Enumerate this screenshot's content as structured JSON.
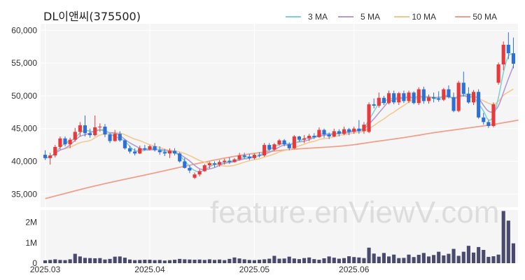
{
  "chart_data": {
    "type": "candlestick",
    "title": "DL이앤씨(375500)",
    "watermark": "feature.enViewV.com",
    "colors": {
      "up": "#e8383b",
      "down": "#2f6fd8",
      "volume": "#4a4a6e",
      "ma3": "#7fd3cf",
      "ma5": "#b59ad1",
      "ma10": "#f5c98e",
      "ma50": "#f0a08a"
    },
    "legend": [
      {
        "name": "3 MA",
        "color": "#7fd3cf"
      },
      {
        "name": "5 MA",
        "color": "#b59ad1"
      },
      {
        "name": "10 MA",
        "color": "#f5c98e"
      },
      {
        "name": "50 MA",
        "color": "#f0a08a"
      }
    ],
    "price_axis": {
      "ylim": [
        33000,
        61000
      ],
      "ticks": [
        60000,
        55000,
        50000,
        45000,
        40000,
        35000
      ],
      "tick_labels": [
        "60,000",
        "55,000",
        "50,000",
        "45,000",
        "40,000",
        "35,000"
      ]
    },
    "volume_axis": {
      "ylim": [
        0,
        2600000
      ],
      "ticks": [
        2000000,
        1000000,
        0
      ],
      "tick_labels": [
        "2M",
        "1M",
        "0"
      ]
    },
    "x_ticks": [
      {
        "index": 0,
        "label": "2025.03"
      },
      {
        "index": 21,
        "label": "2025.04"
      },
      {
        "index": 42,
        "label": "2025.05"
      },
      {
        "index": 62,
        "label": "2025.06"
      }
    ],
    "candles": [
      [
        41000,
        41700,
        40200,
        40500
      ],
      [
        40500,
        41300,
        39500,
        40900
      ],
      [
        40900,
        42500,
        40600,
        42200
      ],
      [
        42200,
        43800,
        41800,
        43500
      ],
      [
        43500,
        43800,
        42300,
        42600
      ],
      [
        42600,
        43600,
        42000,
        43300
      ],
      [
        43300,
        45100,
        43000,
        44500
      ],
      [
        44500,
        46000,
        43800,
        45500
      ],
      [
        45500,
        47000,
        43800,
        44300
      ],
      [
        44300,
        45000,
        43600,
        44000
      ],
      [
        44000,
        47000,
        43800,
        45200
      ],
      [
        45200,
        45800,
        44500,
        45300
      ],
      [
        45300,
        45700,
        43700,
        44100
      ],
      [
        44100,
        44300,
        42800,
        43100
      ],
      [
        43100,
        44800,
        43000,
        44200
      ],
      [
        44200,
        44600,
        43000,
        43200
      ],
      [
        43200,
        43400,
        41800,
        42000
      ],
      [
        42000,
        42400,
        41200,
        41500
      ],
      [
        41500,
        42000,
        40900,
        41200
      ],
      [
        41200,
        42400,
        41100,
        42000
      ],
      [
        42000,
        42500,
        41600,
        41800
      ],
      [
        41800,
        42500,
        41700,
        42300
      ],
      [
        42300,
        42800,
        41500,
        41700
      ],
      [
        41700,
        42300,
        41000,
        41400
      ],
      [
        41400,
        41900,
        40800,
        41200
      ],
      [
        41200,
        42000,
        40500,
        41600
      ],
      [
        41600,
        42000,
        40900,
        41200
      ],
      [
        41200,
        41400,
        39800,
        40000
      ],
      [
        40000,
        40500,
        38900,
        39000
      ],
      [
        39000,
        39400,
        38200,
        38600
      ],
      [
        37500,
        38300,
        37300,
        38000
      ],
      [
        38000,
        38800,
        37700,
        38500
      ],
      [
        38500,
        39600,
        38400,
        39400
      ],
      [
        39400,
        39900,
        38900,
        39700
      ],
      [
        39700,
        40000,
        39100,
        39500
      ],
      [
        39500,
        40200,
        39200,
        39900
      ],
      [
        39900,
        40400,
        39500,
        40100
      ],
      [
        40100,
        40600,
        39600,
        39900
      ],
      [
        39900,
        40500,
        39800,
        40300
      ],
      [
        40300,
        41300,
        40100,
        40900
      ],
      [
        40900,
        41300,
        40400,
        40700
      ],
      [
        40700,
        41100,
        40200,
        40500
      ],
      [
        40500,
        41200,
        40300,
        41000
      ],
      [
        41000,
        41400,
        40600,
        40900
      ],
      [
        40900,
        42800,
        40700,
        42500
      ],
      [
        42500,
        42800,
        41600,
        41800
      ],
      [
        41800,
        42800,
        41600,
        42600
      ],
      [
        42600,
        43400,
        42400,
        43200
      ],
      [
        43200,
        43400,
        42300,
        42600
      ],
      [
        42600,
        42900,
        41700,
        42000
      ],
      [
        42000,
        44000,
        41900,
        43800
      ],
      [
        43800,
        43900,
        43000,
        43300
      ],
      [
        43300,
        44000,
        42800,
        43500
      ],
      [
        43500,
        44200,
        43100,
        43900
      ],
      [
        43900,
        44300,
        43400,
        43700
      ],
      [
        43700,
        45200,
        43600,
        44800
      ],
      [
        44800,
        45000,
        43600,
        44100
      ],
      [
        44100,
        44400,
        43400,
        43800
      ],
      [
        43800,
        45000,
        43700,
        44600
      ],
      [
        44600,
        44900,
        43800,
        44200
      ],
      [
        44200,
        45300,
        44000,
        44900
      ],
      [
        44900,
        45100,
        44000,
        44500
      ],
      [
        44500,
        45300,
        44200,
        45000
      ],
      [
        45000,
        46300,
        44200,
        44600
      ],
      [
        44600,
        46000,
        44200,
        45600
      ],
      [
        44500,
        49000,
        44300,
        48700
      ],
      [
        48700,
        49600,
        48100,
        48500
      ],
      [
        48500,
        50500,
        48200,
        49700
      ],
      [
        49700,
        50000,
        48600,
        48900
      ],
      [
        48900,
        50800,
        48700,
        50400
      ],
      [
        50400,
        50800,
        48700,
        49000
      ],
      [
        49000,
        50600,
        48600,
        50400
      ],
      [
        50400,
        50800,
        48900,
        49200
      ],
      [
        49200,
        50800,
        48900,
        50500
      ],
      [
        50500,
        50700,
        48700,
        48900
      ],
      [
        48900,
        51300,
        48600,
        51000
      ],
      [
        51000,
        51400,
        48800,
        49200
      ],
      [
        49200,
        50200,
        48800,
        49800
      ],
      [
        49800,
        50500,
        49000,
        49600
      ],
      [
        49600,
        50700,
        49100,
        49400
      ],
      [
        49400,
        51200,
        49200,
        51000
      ],
      [
        51000,
        51600,
        49600,
        49800
      ],
      [
        49800,
        50500,
        47500,
        47700
      ],
      [
        47700,
        52300,
        47500,
        52000
      ],
      [
        52000,
        53700,
        49900,
        50300
      ],
      [
        50300,
        51300,
        48800,
        49000
      ],
      [
        49000,
        50900,
        48600,
        50600
      ],
      [
        50600,
        51000,
        46500,
        46700
      ],
      [
        46700,
        47400,
        45600,
        46000
      ],
      [
        46000,
        46300,
        45100,
        45400
      ],
      [
        45400,
        49000,
        45200,
        48700
      ],
      [
        52000,
        55100,
        51700,
        54800
      ],
      [
        54800,
        58300,
        53900,
        57800
      ],
      [
        57800,
        59700,
        55600,
        56500
      ],
      [
        56500,
        58900,
        54200,
        54900
      ]
    ],
    "ma50": [
      [
        0,
        34300
      ],
      [
        10,
        36300
      ],
      [
        20,
        37900
      ],
      [
        30,
        39600
      ],
      [
        40,
        41100
      ],
      [
        50,
        41900
      ],
      [
        60,
        42300
      ],
      [
        66,
        43000
      ],
      [
        72,
        43600
      ],
      [
        78,
        44400
      ],
      [
        85,
        45100
      ],
      [
        90,
        45600
      ],
      [
        95,
        46300
      ]
    ],
    "volumes": [
      140000,
      160000,
      190000,
      160000,
      150000,
      190000,
      460000,
      330000,
      260000,
      250000,
      240000,
      250000,
      180000,
      210000,
      320000,
      330000,
      270000,
      180000,
      150000,
      160000,
      170000,
      170000,
      150000,
      160000,
      130000,
      150000,
      170000,
      210000,
      190000,
      180000,
      170000,
      180000,
      160000,
      190000,
      160000,
      180000,
      150000,
      210000,
      280000,
      230000,
      190000,
      160000,
      150000,
      170000,
      190000,
      220000,
      360000,
      220000,
      230000,
      320000,
      230000,
      200000,
      250000,
      280000,
      200000,
      170000,
      240000,
      330000,
      270000,
      220000,
      250000,
      340000,
      300000,
      280000,
      250000,
      760000,
      470000,
      320000,
      500000,
      330000,
      420000,
      250000,
      260000,
      420000,
      300000,
      410000,
      500000,
      330000,
      400000,
      560000,
      380000,
      460000,
      700000,
      360000,
      560000,
      850000,
      520000,
      790000,
      650000,
      310000,
      340000,
      420000,
      2550000,
      2080000,
      970000
    ]
  }
}
